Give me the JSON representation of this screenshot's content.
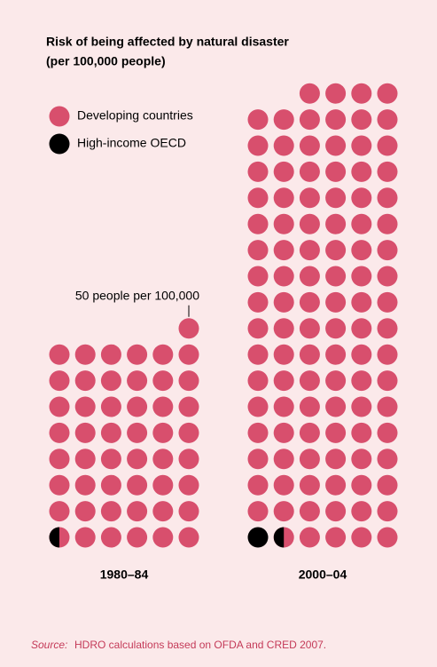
{
  "chart_data": {
    "type": "pictogram",
    "title": "Risk of being affected by natural disaster",
    "subtitle": "(per 100,000 people)",
    "categories": [
      "1980–84",
      "2000–04"
    ],
    "series": [
      {
        "name": "Developing countries",
        "color": "#d84f6d",
        "values": [
          2425,
          5225
        ]
      },
      {
        "name": "High-income OECD",
        "color": "#000000",
        "values": [
          25,
          75
        ]
      }
    ],
    "annotation": {
      "value": 50,
      "label": "50 people per 100,000"
    },
    "source_label": "Source:",
    "source": "HDRO calculations based on OFDA and CRED 2007."
  }
}
